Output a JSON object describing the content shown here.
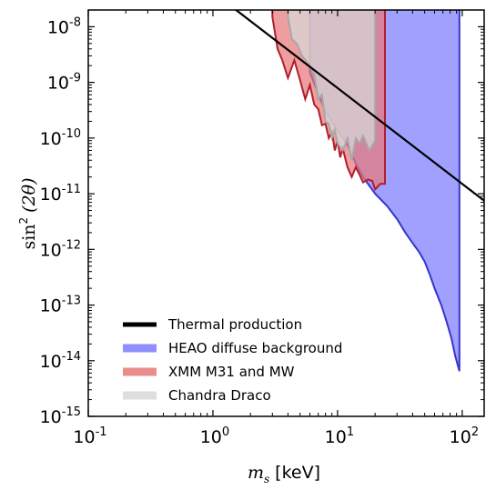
{
  "chart_data": {
    "type": "area",
    "xlabel": {
      "symbol": "m",
      "subscript": "s",
      "unit": "[keV]"
    },
    "ylabel": {
      "prefix": "sin",
      "exp": "2",
      "arg": "(2θ)"
    },
    "x_scale": "log",
    "y_scale": "log",
    "xlim": [
      0.1,
      150
    ],
    "ylim": [
      1e-15,
      2e-08
    ],
    "x_ticks": [
      {
        "value": 0.1,
        "base": "10",
        "exp": "-1"
      },
      {
        "value": 1,
        "base": "10",
        "exp": "0"
      },
      {
        "value": 10,
        "base": "10",
        "exp": "1"
      },
      {
        "value": 100,
        "base": "10",
        "exp": "2"
      }
    ],
    "y_ticks": [
      {
        "value": 1e-15,
        "base": "10",
        "exp": "-15"
      },
      {
        "value": 1e-14,
        "base": "10",
        "exp": "-14"
      },
      {
        "value": 1e-13,
        "base": "10",
        "exp": "-13"
      },
      {
        "value": 1e-12,
        "base": "10",
        "exp": "-12"
      },
      {
        "value": 1e-11,
        "base": "10",
        "exp": "-11"
      },
      {
        "value": 1e-10,
        "base": "10",
        "exp": "-10"
      },
      {
        "value": 1e-09,
        "base": "10",
        "exp": "-9"
      },
      {
        "value": 1e-08,
        "base": "10",
        "exp": "-8"
      }
    ],
    "grid": false,
    "legend_position": "lower-left",
    "series": [
      {
        "name": "HEAO diffuse background",
        "kind": "excluded-region",
        "color": "#7b7bff",
        "edge_color": "#3535cc",
        "boundary": [
          [
            6.0,
            1.5e-09
          ],
          [
            8.0,
            3e-10
          ],
          [
            10.0,
            1.4e-10
          ],
          [
            12.0,
            7.5e-11
          ],
          [
            14.0,
            3.5e-11
          ],
          [
            16.0,
            2e-11
          ],
          [
            20.0,
            1e-11
          ],
          [
            25.0,
            6e-12
          ],
          [
            30.0,
            3.5e-12
          ],
          [
            35.0,
            2e-12
          ],
          [
            40.0,
            1.3e-12
          ],
          [
            45.0,
            9e-13
          ],
          [
            50.0,
            6e-13
          ],
          [
            55.0,
            3.5e-13
          ],
          [
            60.0,
            2e-13
          ],
          [
            68.0,
            1e-13
          ],
          [
            75.0,
            5e-14
          ],
          [
            82.0,
            2.5e-14
          ],
          [
            88.0,
            1.2e-14
          ],
          [
            95.0,
            6.5e-15
          ]
        ],
        "upper_edge_x": 95.0
      },
      {
        "name": "XMM M31 and MW",
        "kind": "excluded-region",
        "color": "#e87878",
        "edge_color": "#b01e2e",
        "boundary": [
          [
            3.0,
            1.5e-08
          ],
          [
            3.3,
            4e-09
          ],
          [
            3.6,
            2.5e-09
          ],
          [
            4.0,
            1.2e-09
          ],
          [
            4.5,
            2.5e-09
          ],
          [
            5.0,
            1.1e-09
          ],
          [
            5.5,
            5e-10
          ],
          [
            6.0,
            9e-10
          ],
          [
            6.5,
            4e-10
          ],
          [
            7.0,
            3.3e-10
          ],
          [
            7.5,
            1.7e-10
          ],
          [
            8.0,
            1.8e-10
          ],
          [
            8.5,
            1e-10
          ],
          [
            9.0,
            1.3e-10
          ],
          [
            9.5,
            6e-11
          ],
          [
            10.0,
            9e-11
          ],
          [
            10.5,
            4.5e-11
          ],
          [
            11.0,
            6.5e-11
          ],
          [
            12.0,
            3e-11
          ],
          [
            13.0,
            2e-11
          ],
          [
            14.0,
            3e-11
          ],
          [
            15.0,
            2.2e-11
          ],
          [
            16.0,
            1.6e-11
          ],
          [
            17.5,
            1.8e-11
          ],
          [
            19.0,
            1.7e-11
          ],
          [
            20.0,
            1.2e-11
          ],
          [
            22.0,
            1.5e-11
          ]
        ],
        "upper_edge_x": 24.0
      },
      {
        "name": "Chandra Draco",
        "kind": "excluded-region",
        "color": "#d8d8d8",
        "edge_color": "#a8a8a8",
        "boundary": [
          [
            4.0,
            1.5e-08
          ],
          [
            4.3,
            6e-09
          ],
          [
            4.7,
            5e-09
          ],
          [
            5.2,
            3e-09
          ],
          [
            5.8,
            2.2e-09
          ],
          [
            6.5,
            1.4e-09
          ],
          [
            7.0,
            5e-10
          ],
          [
            7.5,
            6e-10
          ],
          [
            8.0,
            2e-10
          ],
          [
            8.5,
            1.8e-10
          ],
          [
            9.0,
            1e-10
          ],
          [
            9.5,
            1.4e-10
          ],
          [
            10.0,
            8e-11
          ],
          [
            11.0,
            6e-11
          ],
          [
            12.0,
            1e-10
          ],
          [
            13.0,
            4e-11
          ],
          [
            14.0,
            1e-10
          ],
          [
            15.0,
            8e-11
          ],
          [
            16.0,
            1.1e-10
          ],
          [
            18.0,
            6e-11
          ],
          [
            20.0,
            9e-11
          ]
        ],
        "upper_edge_x": 20.0
      },
      {
        "name": "Thermal production",
        "kind": "line",
        "color": "#000000",
        "points": [
          [
            0.9,
            5e-08
          ],
          [
            150.0,
            7.5e-12
          ]
        ]
      }
    ]
  }
}
